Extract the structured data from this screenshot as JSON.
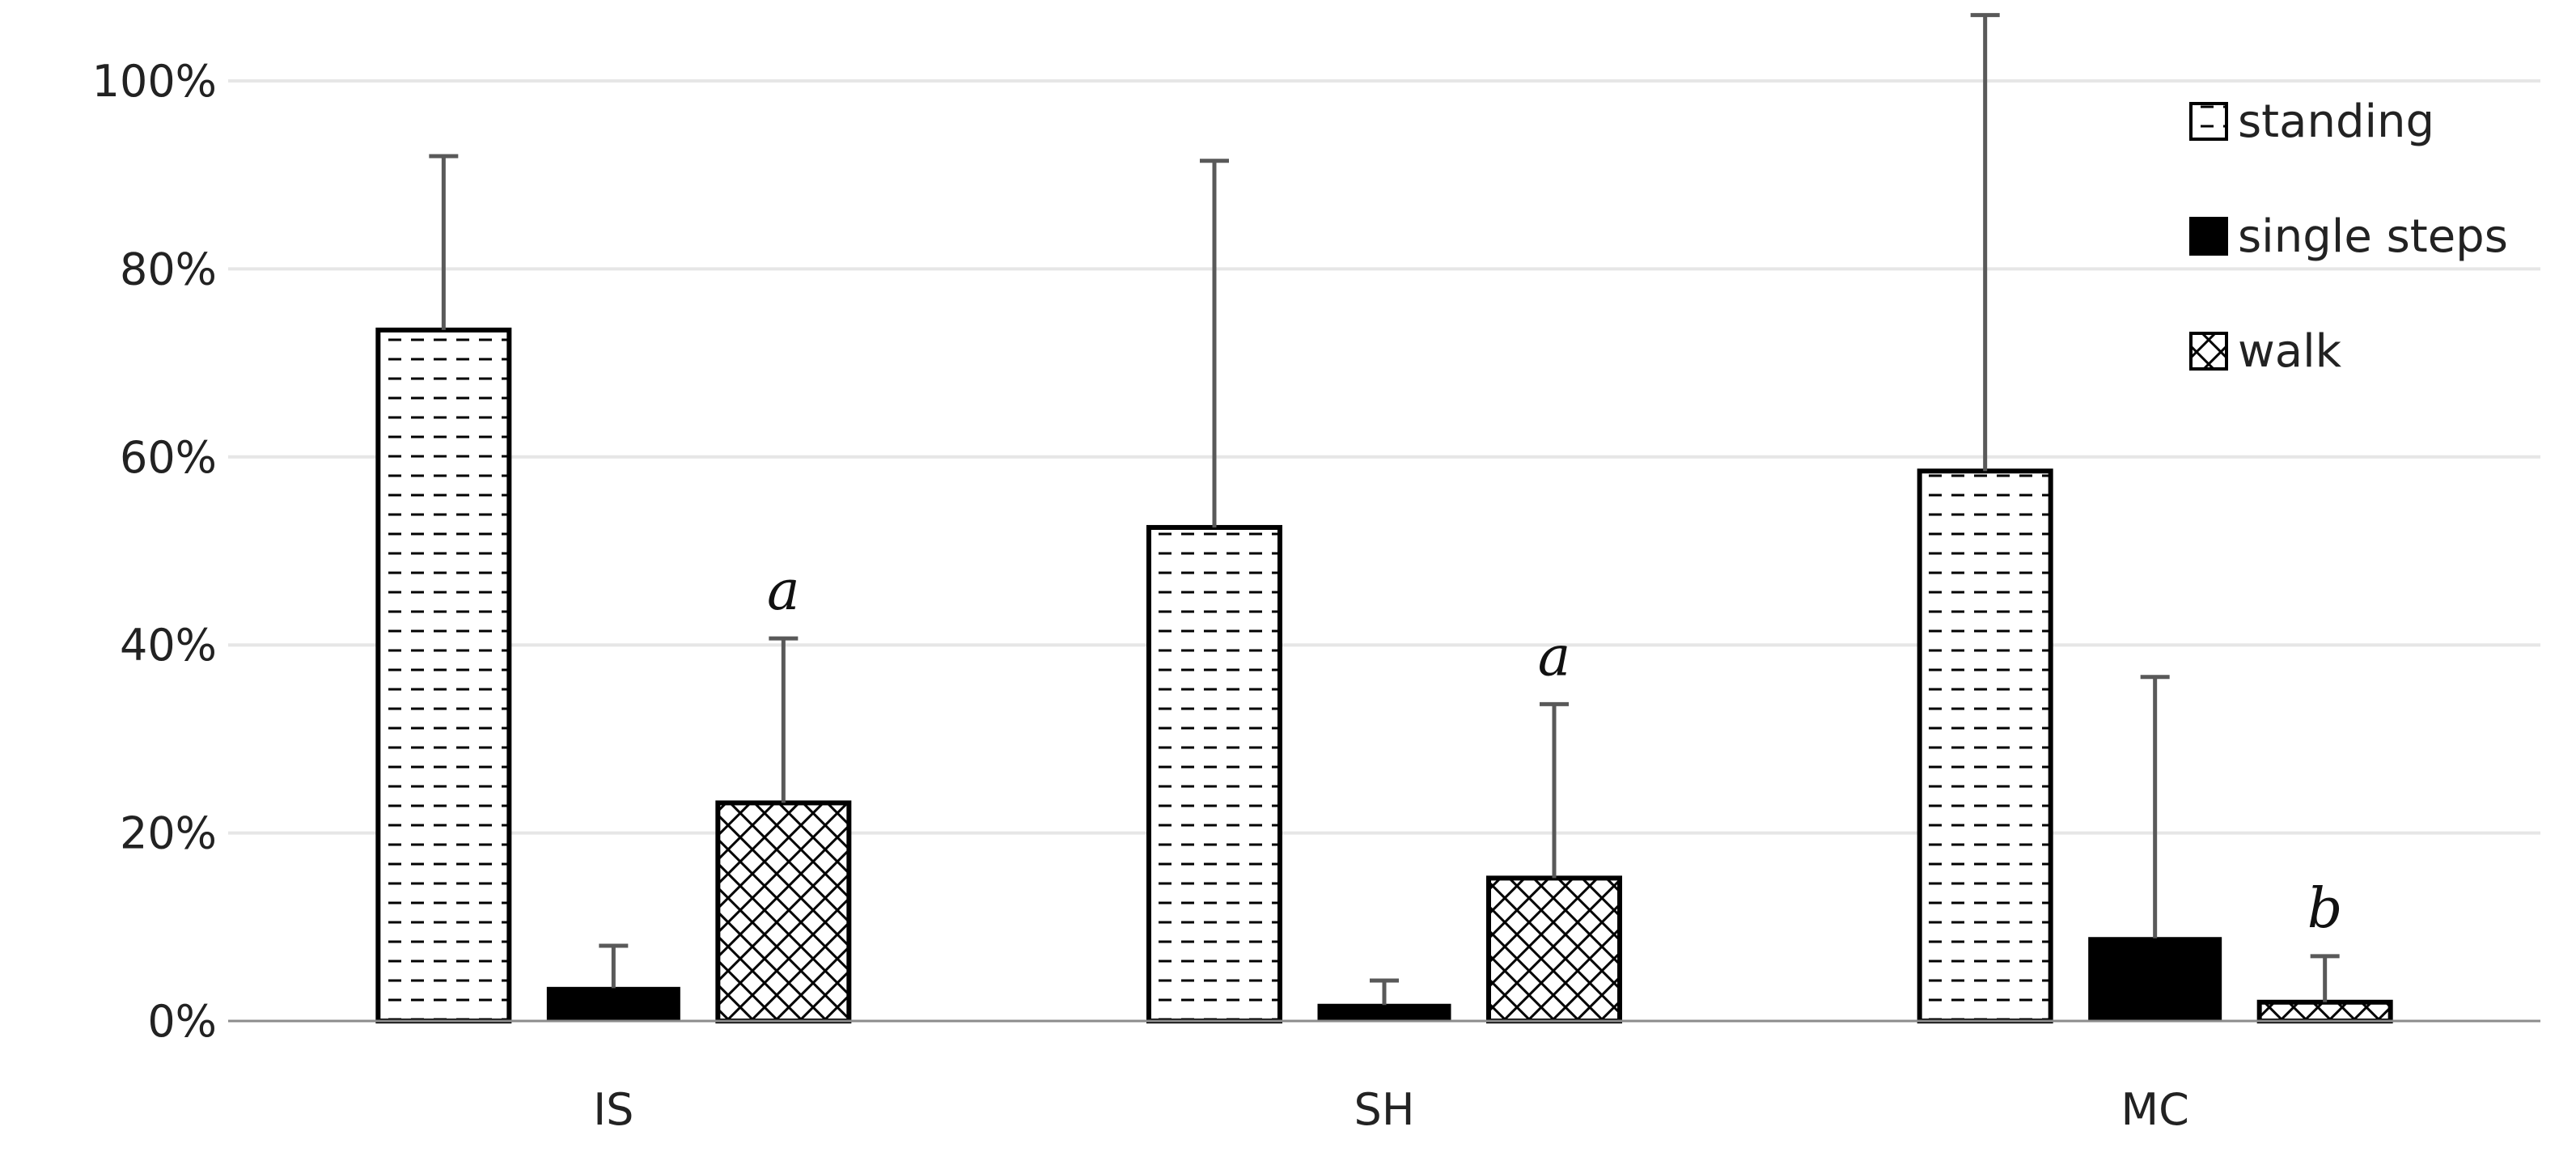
{
  "chart_data": {
    "type": "bar",
    "categories": [
      "IS",
      "SH",
      "MC"
    ],
    "series": [
      {
        "name": "standing",
        "values": [
          0.735,
          0.525,
          0.585
        ],
        "error_plus": [
          0.185,
          0.39,
          0.485
        ],
        "pattern": "dash"
      },
      {
        "name": "single steps",
        "values": [
          0.035,
          0.017,
          0.088
        ],
        "error_plus": [
          0.045,
          0.026,
          0.278
        ],
        "pattern": "solid"
      },
      {
        "name": "walk",
        "values": [
          0.232,
          0.152,
          0.02
        ],
        "error_plus": [
          0.175,
          0.185,
          0.049
        ],
        "pattern": "crosshatch"
      }
    ],
    "significance_labels": [
      "a",
      "a",
      "b"
    ],
    "significance_series": "walk",
    "yticks": [
      "0%",
      "20%",
      "40%",
      "60%",
      "80%",
      "100%"
    ],
    "ylim": [
      0,
      1.0
    ],
    "title": "",
    "xlabel": "",
    "ylabel": "",
    "grid": true,
    "legend_position": "top-right",
    "colors": {
      "bar_outline": "#000000",
      "error_bar": "#595959",
      "grid": "#e6e6e6",
      "axis": "#8c8c8c"
    }
  }
}
